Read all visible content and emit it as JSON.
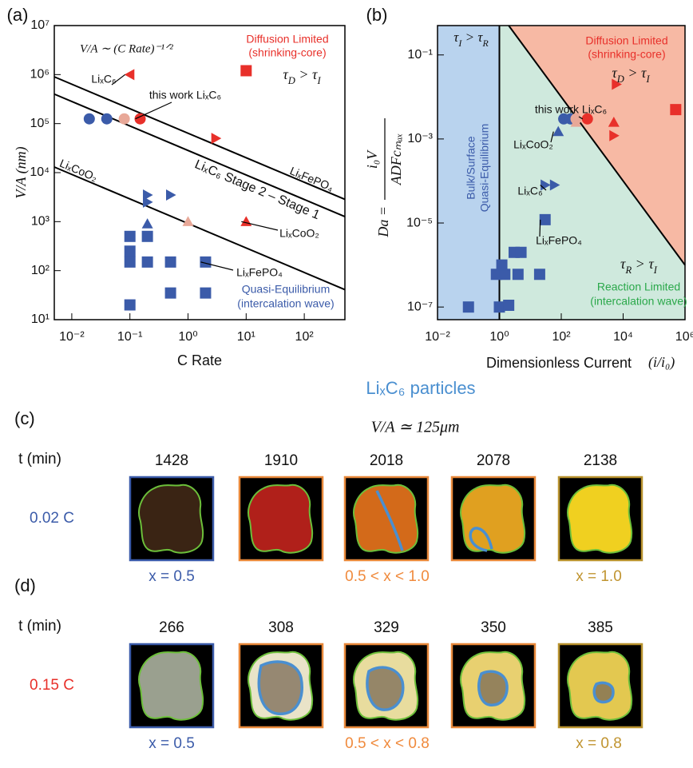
{
  "chart_data": [
    {
      "type": "scatter",
      "panel_label": "(a)",
      "xlabel": "C Rate",
      "ylabel": "V/A (nm)",
      "log_x": true,
      "log_y": true,
      "xlim": [
        0.005,
        500
      ],
      "ylim": [
        10,
        10000000
      ],
      "xticks": [
        {
          "value": 0.01,
          "label": "10⁻²"
        },
        {
          "value": 0.1,
          "label": "10⁻¹"
        },
        {
          "value": 1,
          "label": "10⁰"
        },
        {
          "value": 10,
          "label": "10¹"
        },
        {
          "value": 100,
          "label": "10²"
        }
      ],
      "yticks": [
        {
          "value": 10,
          "label": "10¹"
        },
        {
          "value": 100,
          "label": "10²"
        },
        {
          "value": 1000,
          "label": "10³"
        },
        {
          "value": 10000,
          "label": "10⁴"
        },
        {
          "value": 100000,
          "label": "10⁵"
        },
        {
          "value": 1000000,
          "label": "10⁶"
        },
        {
          "value": 10000000,
          "label": "10⁷"
        }
      ],
      "lines": [
        {
          "x": [
            0.005,
            500
          ],
          "y": [
            900000,
            2846
          ]
        },
        {
          "x": [
            0.005,
            500
          ],
          "y": [
            400000,
            1265
          ]
        },
        {
          "x": [
            0.005,
            500
          ],
          "y": [
            13000,
            41
          ]
        }
      ],
      "series": [
        {
          "marker": "circle",
          "color": "#3b5ba9",
          "x": [
            0.02,
            0.04
          ],
          "values": [
            125000,
            125000
          ]
        },
        {
          "marker": "circle",
          "color": "#e8a898",
          "x": [
            0.08
          ],
          "values": [
            125000
          ]
        },
        {
          "marker": "circle",
          "color": "#e8302a",
          "x": [
            0.15
          ],
          "values": [
            125000
          ]
        },
        {
          "marker": "tri-left",
          "color": "#e8302a",
          "x": [
            0.1
          ],
          "values": [
            1000000
          ]
        },
        {
          "marker": "square",
          "color": "#e8302a",
          "x": [
            10
          ],
          "values": [
            1200000
          ]
        },
        {
          "marker": "tri-right",
          "color": "#e8302a",
          "x": [
            3
          ],
          "values": [
            50000
          ]
        },
        {
          "marker": "tri-up",
          "color": "#e8302a",
          "x": [
            10
          ],
          "values": [
            1000
          ]
        },
        {
          "marker": "tri-up",
          "color": "#e8a898",
          "x": [
            1
          ],
          "values": [
            1000
          ]
        },
        {
          "marker": "tri-up",
          "color": "#3b5ba9",
          "x": [
            0.2
          ],
          "values": [
            900
          ]
        },
        {
          "marker": "tri-right",
          "color": "#3b5ba9",
          "x": [
            0.2,
            0.2,
            0.5
          ],
          "values": [
            3500,
            2500,
            3500
          ]
        },
        {
          "marker": "square",
          "color": "#3b5ba9",
          "x": [
            0.1,
            0.1,
            0.1,
            0.1,
            0.2,
            0.2,
            0.5,
            0.5,
            2,
            2
          ],
          "values": [
            500,
            250,
            150,
            20,
            500,
            150,
            150,
            35,
            150,
            35
          ]
        }
      ],
      "annotations": [
        {
          "text": "V/A ∼ (C Rate)⁻¹ᐟ²"
        },
        {
          "text": "Diffusion Limited",
          "color": "#e8302a"
        },
        {
          "text": "(shrinking-core)",
          "color": "#e8302a"
        },
        {
          "text": "τD > τI"
        },
        {
          "text": "LiₓC₆"
        },
        {
          "text": "this work LiₓC₆"
        },
        {
          "text": "LiₓFePO₄"
        },
        {
          "text": "LiₓC₆ Stage 2 – Stage 1"
        },
        {
          "text": "LiₓCoO₂"
        },
        {
          "text": "LiₓCoO₂"
        },
        {
          "text": "LiₓFePO₄"
        },
        {
          "text": "Quasi-Equilibrium",
          "color": "#3b5ba9"
        },
        {
          "text": "(intercalation wave)",
          "color": "#3b5ba9"
        }
      ]
    },
    {
      "type": "scatter",
      "panel_label": "(b)",
      "xlabel": "Dimensionless Current",
      "xlabel_math": "(i/i₀)",
      "ylabel": {
        "lhs": "Da =",
        "numerator": "i₀V",
        "denominator": "ADFcₘₐₓ"
      },
      "log_x": true,
      "log_y": true,
      "xlim": [
        0.01,
        1000000
      ],
      "ylim": [
        5e-08,
        0.5
      ],
      "xticks": [
        {
          "value": 0.01,
          "label": "10⁻²"
        },
        {
          "value": 1,
          "label": "10⁰"
        },
        {
          "value": 100,
          "label": "10²"
        },
        {
          "value": 10000,
          "label": "10⁴"
        },
        {
          "value": 1000000,
          "label": "10⁶"
        }
      ],
      "yticks": [
        {
          "value": 1e-07,
          "label": "10⁻⁷"
        },
        {
          "value": 1e-05,
          "label": "10⁻⁵"
        },
        {
          "value": 0.001,
          "label": "10⁻³"
        },
        {
          "value": 0.1,
          "label": "10⁻¹"
        }
      ],
      "region_colors": [
        "#b9d3ee",
        "#f7b9a4",
        "#cfe9dd"
      ],
      "lines": [
        {
          "x": [
            1,
            1
          ],
          "y": [
            5e-08,
            0.5
          ]
        },
        {
          "x": [
            2,
            1000000
          ],
          "y": [
            0.5,
            1e-06
          ]
        }
      ],
      "series": [
        {
          "marker": "square",
          "color": "#3b5ba9",
          "x": [
            0.1,
            1,
            0.8,
            1.5,
            1.2,
            3,
            5,
            2,
            4,
            20,
            30
          ],
          "values": [
            1e-07,
            1e-07,
            6e-07,
            6e-07,
            1e-06,
            2e-06,
            2e-06,
            1.1e-07,
            6e-07,
            6e-07,
            1.2e-05
          ]
        },
        {
          "marker": "tri-right",
          "color": "#3b5ba9",
          "x": [
            30,
            60
          ],
          "values": [
            8e-05,
            8e-05
          ]
        },
        {
          "marker": "tri-up",
          "color": "#3b5ba9",
          "x": [
            80
          ],
          "values": [
            0.0015
          ]
        },
        {
          "marker": "circle",
          "color": "#3b5ba9",
          "x": [
            120,
            200
          ],
          "values": [
            0.003,
            0.003
          ]
        },
        {
          "marker": "circle",
          "color": "#e8a898",
          "x": [
            300
          ],
          "values": [
            0.003
          ]
        },
        {
          "marker": "tri-up",
          "color": "#e8a898",
          "x": [
            300
          ],
          "values": [
            0.0025
          ]
        },
        {
          "marker": "circle",
          "color": "#e8302a",
          "x": [
            700
          ],
          "values": [
            0.003
          ]
        },
        {
          "marker": "tri-up",
          "color": "#e8302a",
          "x": [
            5000
          ],
          "values": [
            0.0025
          ]
        },
        {
          "marker": "tri-right",
          "color": "#e8302a",
          "x": [
            5000,
            6000
          ],
          "values": [
            0.0012,
            0.02
          ]
        },
        {
          "marker": "square",
          "color": "#e8302a",
          "x": [
            500000
          ],
          "values": [
            0.005
          ]
        }
      ],
      "annotations": [
        {
          "text": "τI > τR"
        },
        {
          "text": "Diffusion Limited",
          "color": "#e8302a"
        },
        {
          "text": "(shrinking-core)",
          "color": "#e8302a"
        },
        {
          "text": "τD > τI"
        },
        {
          "text": "Bulk/Surface",
          "color": "#3b5ba9"
        },
        {
          "text": "Quasi-Equilibrium",
          "color": "#3b5ba9"
        },
        {
          "text": "this work LiₓC₆"
        },
        {
          "text": "LiₓCoO₂"
        },
        {
          "text": "LiₓC₆"
        },
        {
          "text": "LiₓFePO₄"
        },
        {
          "text": "τR > τI"
        },
        {
          "text": "Reaction Limited",
          "color": "#2aa84a"
        },
        {
          "text": "(intercalation wave)",
          "color": "#2aa84a"
        }
      ]
    }
  ],
  "figure": {
    "title": "LiₓC₆ particles",
    "subtitle": "V/A ≃ 125μm",
    "rows": [
      {
        "panel_label": "(c)",
        "time_label": "t (min)",
        "times": [
          1428,
          1910,
          2018,
          2078,
          2138
        ],
        "rate": "0.02 C",
        "rate_color": "#3b5ba9",
        "captions": [
          "x = 0.5",
          "0.5 < x < 1.0",
          "x = 1.0"
        ]
      },
      {
        "panel_label": "(d)",
        "time_label": "t (min)",
        "times": [
          266,
          308,
          329,
          350,
          385
        ],
        "rate": "0.15 C",
        "rate_color": "#e8302a",
        "captions": [
          "x = 0.5",
          "0.5 < x < 0.8",
          "x = 0.8"
        ]
      }
    ]
  }
}
